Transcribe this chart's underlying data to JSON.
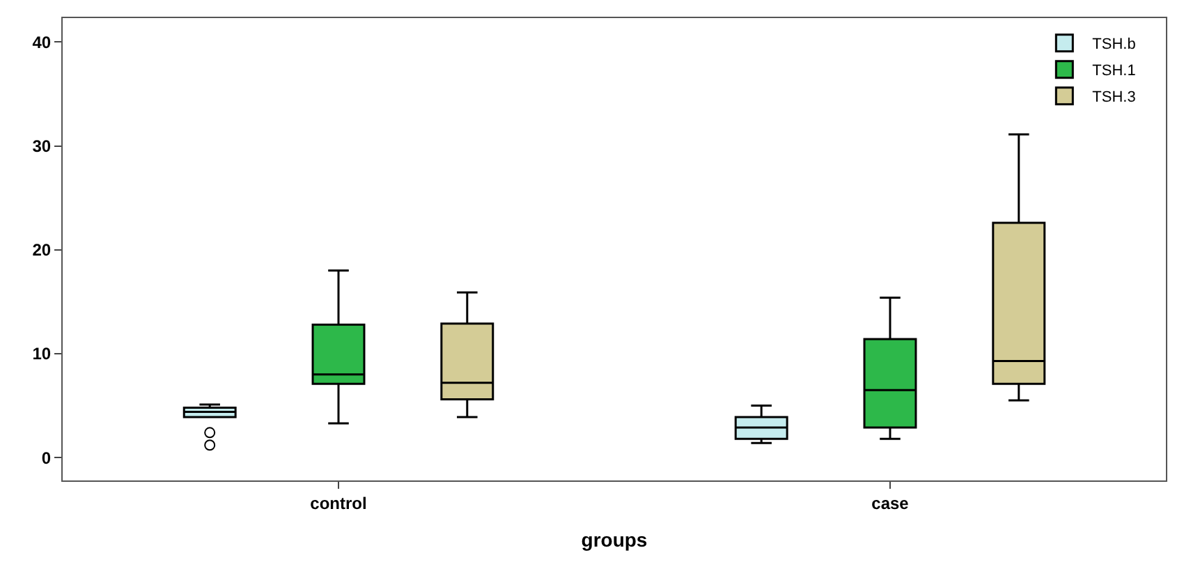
{
  "chart_data": {
    "type": "box",
    "xlabel": "groups",
    "categories": [
      "control",
      "case"
    ],
    "ylim": [
      -2.2,
      42.3
    ],
    "yticks": [
      0,
      10,
      20,
      30,
      40
    ],
    "legend": "top right",
    "series": [
      {
        "name": "TSH.b",
        "color": "#c5ecee",
        "boxes": [
          {
            "low": 3.9,
            "q1": 3.9,
            "median": 4.4,
            "q3": 4.8,
            "high": 5.1,
            "outliers": [
              2.4,
              1.2
            ]
          },
          {
            "low": 1.4,
            "q1": 1.8,
            "median": 2.9,
            "q3": 3.9,
            "high": 5.0
          }
        ]
      },
      {
        "name": "TSH.1",
        "color": "#2db84a",
        "boxes": [
          {
            "low": 3.3,
            "q1": 7.1,
            "median": 8.0,
            "q3": 12.8,
            "high": 18.0
          },
          {
            "low": 1.8,
            "q1": 2.9,
            "median": 6.5,
            "q3": 11.4,
            "high": 15.4
          }
        ]
      },
      {
        "name": "TSH.3",
        "color": "#d4cc96",
        "boxes": [
          {
            "low": 3.9,
            "q1": 5.6,
            "median": 7.2,
            "q3": 12.9,
            "high": 15.9
          },
          {
            "low": 5.5,
            "q1": 7.1,
            "median": 9.3,
            "q3": 22.6,
            "high": 31.1
          }
        ]
      }
    ]
  }
}
